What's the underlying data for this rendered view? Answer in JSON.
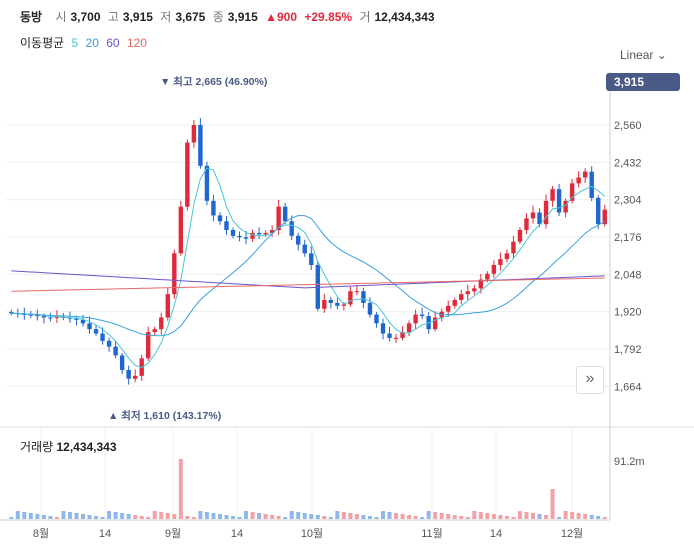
{
  "header": {
    "name": "동방",
    "open_label": "시",
    "open": "3,700",
    "high_label": "고",
    "high": "3,915",
    "low_label": "저",
    "low": "3,675",
    "close_label": "종",
    "close": "3,915",
    "change": "▲900",
    "change_pct": "+29.85%",
    "volume_label": "거",
    "volume": "12,434,343"
  },
  "moving_averages": {
    "label": "이동평균",
    "items": [
      {
        "period": "5",
        "color": "#47c6d6"
      },
      {
        "period": "20",
        "color": "#3aa0e0"
      },
      {
        "period": "60",
        "color": "#6b54c9"
      },
      {
        "period": "120",
        "color": "#e86a6a"
      }
    ]
  },
  "scale_mode": "Linear",
  "current_price_tag": "3,915",
  "volume_panel": {
    "label": "거래량",
    "value": "12,434,343",
    "axis_label": "91.2m"
  },
  "colors": {
    "up": "#e0293b",
    "down": "#1f66d1",
    "vol_up": "#f3a0a6",
    "vol_down": "#8fb8ea",
    "tag": "#4a5a86"
  },
  "chart_data": {
    "type": "candlestick",
    "y_ticks": [
      2560,
      2432,
      2304,
      2176,
      2048,
      1920,
      1792,
      1664
    ],
    "y_tick_labels": [
      "2,560",
      "2,432",
      "2,304",
      "2,176",
      "2,048",
      "1,920",
      "1,792",
      "1,664"
    ],
    "x_tick_labels": [
      "8월",
      "14",
      "9월",
      "14",
      "10월",
      "11월",
      "14",
      "12월"
    ],
    "annotations": [
      {
        "text": "▼ 최고 2,665 (46.90%)",
        "kind": "high"
      },
      {
        "text": "▲ 최저 1,610 (143.17%)",
        "kind": "low"
      }
    ],
    "ohlc_sample": {
      "high_marker": 2665,
      "low_marker": 1610
    },
    "volume_axis_max_label": "91.2m"
  }
}
